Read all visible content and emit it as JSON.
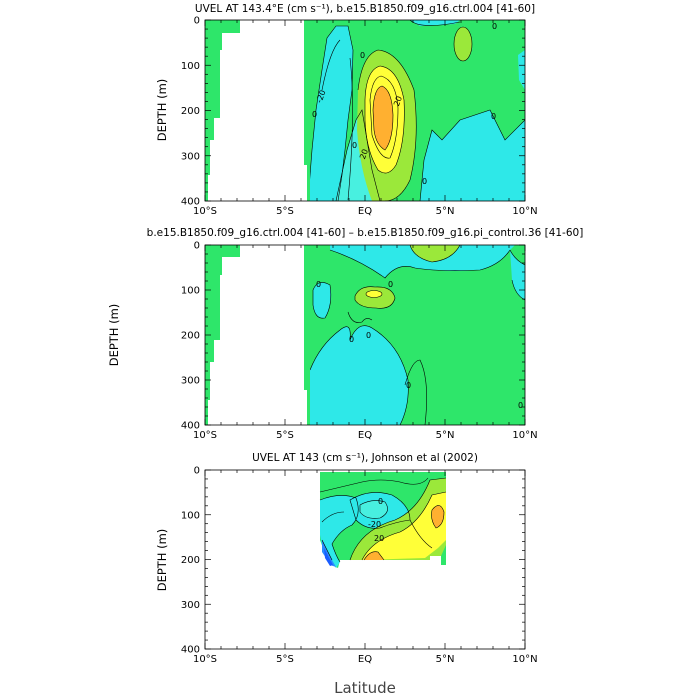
{
  "colors": {
    "land": "#ffffff",
    "green": "#2ee66a",
    "cyan": "#2ee8e8",
    "lightcyan": "#48f0e0",
    "lime": "#9be83a",
    "yellow": "#ffff38",
    "orange": "#ffb030",
    "blue": "#2a8cff",
    "darkblue": "#1a5cff"
  },
  "xlabel": "Latitude",
  "chart_data": [
    {
      "type": "contour",
      "title": "UVEL AT 143.4°E (cm s⁻¹), b.e15.B1850.f09_g16.ctrl.004 [41-60]",
      "ylabel": "DEPTH (m)",
      "xlim": [
        -10,
        10
      ],
      "ylim": [
        400,
        0
      ],
      "x_ticks": [
        -10,
        -5,
        0,
        5,
        10
      ],
      "x_tick_labels": [
        "10°S",
        "5°S",
        "EQ",
        "5°N",
        "10°N"
      ],
      "y_ticks": [
        0,
        100,
        200,
        300,
        400
      ],
      "y_tick_labels": [
        "0",
        "100",
        "200",
        "300",
        "400"
      ],
      "contour_labels": [
        {
          "text": "0",
          "lat": -3.4,
          "depth": 210
        },
        {
          "text": "0",
          "lat": -0.1,
          "depth": 80
        },
        {
          "text": "-20",
          "lat": -2.5,
          "depth": 160
        },
        {
          "text": "20",
          "lat": 2.3,
          "depth": 175
        },
        {
          "text": "20",
          "lat": 0.0,
          "depth": 300
        },
        {
          "text": "0",
          "lat": -0.6,
          "depth": 280
        },
        {
          "text": "0",
          "lat": 3.9,
          "depth": 360
        },
        {
          "text": "0",
          "lat": 8.4,
          "depth": 15
        },
        {
          "text": "0",
          "lat": 8.2,
          "depth": 215
        }
      ]
    },
    {
      "type": "contour",
      "title": "b.e15.B1850.f09_g16.ctrl.004 [41-60] – b.e15.B1850.f09_g16.pi_control.36 [41-60]",
      "ylabel": "DEPTH (m)",
      "xlim": [
        -10,
        10
      ],
      "ylim": [
        400,
        0
      ],
      "x_ticks": [
        -10,
        -5,
        0,
        5,
        10
      ],
      "x_tick_labels": [
        "10°S",
        "5°S",
        "EQ",
        "5°N",
        "10°N"
      ],
      "y_ticks": [
        0,
        100,
        200,
        300,
        400
      ],
      "y_tick_labels": [
        "0",
        "100",
        "200",
        "300",
        "400"
      ],
      "contour_labels": [
        {
          "text": "0",
          "lat": -3.0,
          "depth": 90
        },
        {
          "text": "0",
          "lat": 1.5,
          "depth": 90
        },
        {
          "text": "0",
          "lat": 0.0,
          "depth": 200
        },
        {
          "text": "0",
          "lat": -1.0,
          "depth": 215
        },
        {
          "text": "0",
          "lat": 4.6,
          "depth": 320
        },
        {
          "text": "0",
          "lat": 9.9,
          "depth": 360
        }
      ]
    },
    {
      "type": "contour",
      "title": "UVEL AT 143 (cm s⁻¹), Johnson et al (2002)",
      "ylabel": "DEPTH (m)",
      "xlim": [
        -10,
        10
      ],
      "ylim": [
        400,
        0
      ],
      "x_ticks": [
        -10,
        -5,
        0,
        5,
        10
      ],
      "x_tick_labels": [
        "10°S",
        "5°S",
        "EQ",
        "5°N",
        "10°N"
      ],
      "y_ticks": [
        0,
        100,
        200,
        300,
        400
      ],
      "y_tick_labels": [
        "0",
        "100",
        "200",
        "300",
        "400"
      ],
      "contour_labels": [
        {
          "text": "0",
          "lat": 0.8,
          "depth": 70
        },
        {
          "text": "-20",
          "lat": 0.5,
          "depth": 140
        },
        {
          "text": "20",
          "lat": 1.0,
          "depth": 155
        }
      ]
    }
  ]
}
